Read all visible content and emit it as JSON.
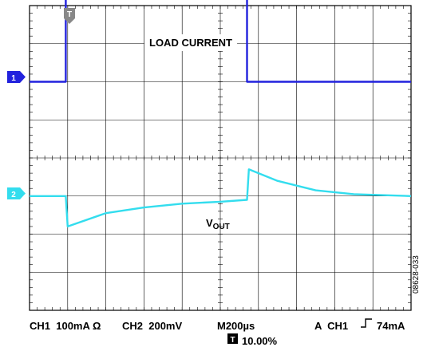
{
  "chart_data": [
    {
      "type": "line",
      "title": "",
      "grid": true,
      "x_divisions": 10,
      "y_divisions": 8,
      "trigger": {
        "marker": "T",
        "position": "top, at first rising edge"
      },
      "series": [
        {
          "name": "LOAD CURRENT",
          "channel": "1",
          "color": "#2222dd",
          "x": [
            0,
            0.95,
            0.95,
            5.7,
            5.7,
            10
          ],
          "y": [
            2.0,
            2.0,
            4.4,
            4.4,
            2.0,
            2.0
          ]
        },
        {
          "name": "VOUT",
          "channel": "2",
          "color": "#33ddee",
          "x": [
            0,
            0.95,
            1.0,
            2.0,
            3.0,
            4.0,
            5.0,
            5.7,
            5.75,
            6.5,
            7.5,
            8.5,
            10
          ],
          "y": [
            -1.0,
            -1.0,
            -1.8,
            -1.45,
            -1.3,
            -1.2,
            -1.15,
            -1.1,
            -0.3,
            -0.6,
            -0.85,
            -0.95,
            -1.0
          ]
        }
      ]
    }
  ],
  "trace_labels": {
    "load_current": "LOAD CURRENT",
    "vout_main": "V",
    "vout_sub": "OUT"
  },
  "channel_markers": {
    "ch1": "1",
    "ch2": "2",
    "trigger": "T"
  },
  "status": {
    "ch1": "CH1  100mA Ω",
    "ch2": "CH2  200mV",
    "timebase": "M200µs",
    "trigger_prefix": "A  CH1",
    "trigger_level": "74mA",
    "trigger_position": "10.00%",
    "trigger_icon": "T"
  },
  "figure_id": "08628-033"
}
